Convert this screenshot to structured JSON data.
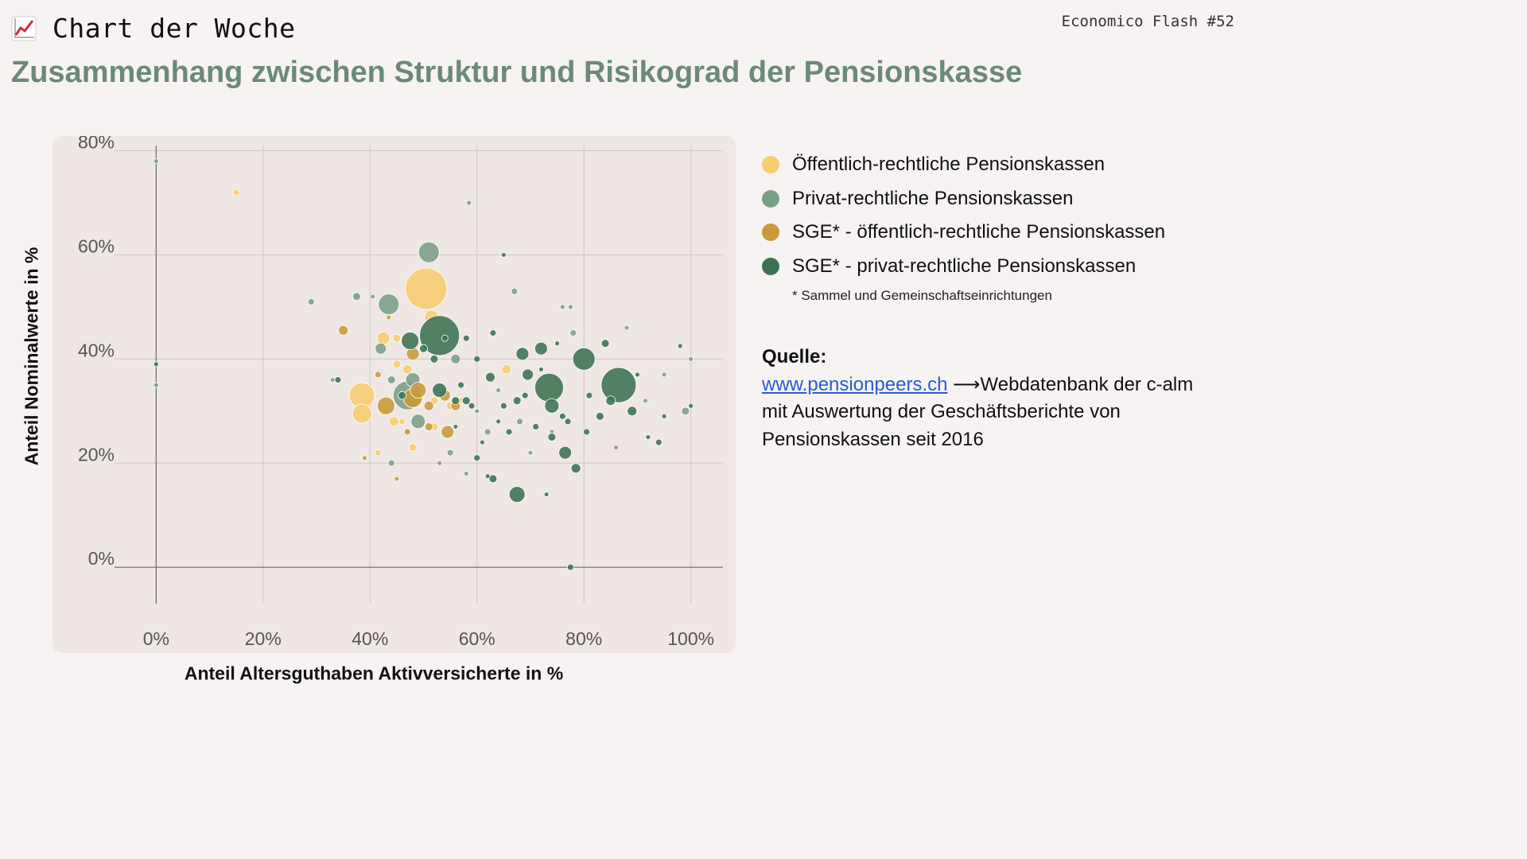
{
  "header": {
    "kicker": "Chart der Woche",
    "issue": "Economico Flash #52",
    "title": "Zusammenhang zwischen Struktur und Risikograd der Pensionskasse"
  },
  "legend": {
    "items": [
      {
        "label": "Öffentlich-rechtliche Pensionskassen",
        "color": "#f9cd6e"
      },
      {
        "label": "Privat-rechtliche Pensionskassen",
        "color": "#7a9f87"
      },
      {
        "label": "SGE* - öffentlich-rechtliche Pensionskassen",
        "color": "#c9993a"
      },
      {
        "label": "SGE* - privat-rechtliche Pensionskassen",
        "color": "#3c7252"
      }
    ],
    "footnote": "* Sammel und Gemeinschaftseinrichtungen"
  },
  "source": {
    "title": "Quelle:",
    "link": "www.pensionpeers.ch",
    "arrow": "⟶",
    "text_after_link": "Webdatenbank der c-alm mit Auswertung der Geschäftsberichte von Pensionskassen seit 2016"
  },
  "chart_data": {
    "type": "scatter",
    "title": "Zusammenhang zwischen Struktur und Risikograd der Pensionskasse",
    "xlabel": "Anteil Altersguthaben Aktivversicherte in %",
    "ylabel": "Anteil Nominalwerte in %",
    "xlim": [
      -6,
      106
    ],
    "ylim": [
      -7,
      81
    ],
    "x_ticks": [
      0,
      20,
      40,
      60,
      80,
      100
    ],
    "y_ticks": [
      0,
      20,
      40,
      60,
      80
    ],
    "x_tick_labels": [
      "0%",
      "20%",
      "40%",
      "60%",
      "80%",
      "100%"
    ],
    "y_tick_labels": [
      "0%",
      "20%",
      "40%",
      "60%",
      "80%"
    ],
    "grid": true,
    "series": [
      {
        "name": "Öffentlich-rechtliche Pensionskassen",
        "color": "#f9cd6e",
        "points": [
          {
            "x": 15,
            "y": 72,
            "s": 4
          },
          {
            "x": 50.5,
            "y": 53.5,
            "s": 26
          },
          {
            "x": 51.5,
            "y": 48,
            "s": 9
          },
          {
            "x": 42.5,
            "y": 44,
            "s": 8
          },
          {
            "x": 45,
            "y": 44,
            "s": 5
          },
          {
            "x": 38.5,
            "y": 33,
            "s": 16
          },
          {
            "x": 38.5,
            "y": 29.5,
            "s": 12
          },
          {
            "x": 42.5,
            "y": 30,
            "s": 6
          },
          {
            "x": 44.5,
            "y": 28,
            "s": 6
          },
          {
            "x": 47,
            "y": 38,
            "s": 6
          },
          {
            "x": 49,
            "y": 35,
            "s": 5
          },
          {
            "x": 48,
            "y": 23,
            "s": 5
          },
          {
            "x": 41.5,
            "y": 22,
            "s": 4
          },
          {
            "x": 52,
            "y": 27,
            "s": 5
          },
          {
            "x": 55,
            "y": 31,
            "s": 5
          },
          {
            "x": 45,
            "y": 39,
            "s": 5
          },
          {
            "x": 65.5,
            "y": 38,
            "s": 6
          },
          {
            "x": 52,
            "y": 32,
            "s": 5
          },
          {
            "x": 46,
            "y": 28,
            "s": 4
          },
          {
            "x": 57,
            "y": 32,
            "s": 4
          }
        ]
      },
      {
        "name": "Privat-rechtliche Pensionskassen",
        "color": "#7a9f87",
        "points": [
          {
            "x": 51,
            "y": 60.5,
            "s": 13
          },
          {
            "x": 43.5,
            "y": 50.5,
            "s": 13
          },
          {
            "x": 37.5,
            "y": 52,
            "s": 5
          },
          {
            "x": 29,
            "y": 51,
            "s": 4
          },
          {
            "x": 40.5,
            "y": 52,
            "s": 3
          },
          {
            "x": 0,
            "y": 78,
            "s": 3
          },
          {
            "x": 0,
            "y": 35,
            "s": 3
          },
          {
            "x": 58.5,
            "y": 70,
            "s": 3
          },
          {
            "x": 67,
            "y": 53,
            "s": 4
          },
          {
            "x": 47,
            "y": 33,
            "s": 18
          },
          {
            "x": 48,
            "y": 36,
            "s": 9
          },
          {
            "x": 49,
            "y": 28,
            "s": 9
          },
          {
            "x": 42,
            "y": 42,
            "s": 7
          },
          {
            "x": 56,
            "y": 40,
            "s": 6
          },
          {
            "x": 44,
            "y": 20,
            "s": 4
          },
          {
            "x": 55,
            "y": 22,
            "s": 4
          },
          {
            "x": 62,
            "y": 26,
            "s": 4
          },
          {
            "x": 76,
            "y": 50,
            "s": 3
          },
          {
            "x": 77.5,
            "y": 50,
            "s": 3
          },
          {
            "x": 88,
            "y": 46,
            "s": 3
          },
          {
            "x": 91.5,
            "y": 32,
            "s": 3
          },
          {
            "x": 95,
            "y": 37,
            "s": 3
          },
          {
            "x": 99,
            "y": 30,
            "s": 5
          },
          {
            "x": 100,
            "y": 40,
            "s": 3
          },
          {
            "x": 86,
            "y": 23,
            "s": 3
          },
          {
            "x": 70,
            "y": 22,
            "s": 3
          },
          {
            "x": 60,
            "y": 30,
            "s": 3
          },
          {
            "x": 53,
            "y": 20,
            "s": 3
          },
          {
            "x": 58,
            "y": 18,
            "s": 3
          },
          {
            "x": 64,
            "y": 34,
            "s": 3
          },
          {
            "x": 74,
            "y": 26,
            "s": 3
          },
          {
            "x": 33,
            "y": 36,
            "s": 3
          },
          {
            "x": 78,
            "y": 45,
            "s": 4
          },
          {
            "x": 68,
            "y": 28,
            "s": 4
          },
          {
            "x": 44,
            "y": 36,
            "s": 5
          }
        ]
      },
      {
        "name": "SGE* - öffentlich-rechtliche Pensionskassen",
        "color": "#c9993a",
        "points": [
          {
            "x": 35,
            "y": 45.5,
            "s": 6
          },
          {
            "x": 43,
            "y": 31,
            "s": 11
          },
          {
            "x": 48,
            "y": 32.5,
            "s": 12
          },
          {
            "x": 49,
            "y": 34,
            "s": 10
          },
          {
            "x": 48,
            "y": 41,
            "s": 8
          },
          {
            "x": 54.5,
            "y": 26,
            "s": 8
          },
          {
            "x": 51,
            "y": 31,
            "s": 6
          },
          {
            "x": 56,
            "y": 31,
            "s": 6
          },
          {
            "x": 54,
            "y": 33,
            "s": 7
          },
          {
            "x": 39,
            "y": 21,
            "s": 3
          },
          {
            "x": 45,
            "y": 17,
            "s": 3
          },
          {
            "x": 43.5,
            "y": 48,
            "s": 3
          },
          {
            "x": 47,
            "y": 26,
            "s": 4
          },
          {
            "x": 51,
            "y": 27,
            "s": 5
          },
          {
            "x": 41.5,
            "y": 37,
            "s": 4
          }
        ]
      },
      {
        "name": "SGE* - privat-rechtliche Pensionskassen",
        "color": "#3c7252",
        "points": [
          {
            "x": 53,
            "y": 44.5,
            "s": 25
          },
          {
            "x": 86.5,
            "y": 35,
            "s": 22
          },
          {
            "x": 73.5,
            "y": 34.5,
            "s": 18
          },
          {
            "x": 80,
            "y": 40,
            "s": 14
          },
          {
            "x": 47.5,
            "y": 43.5,
            "s": 11
          },
          {
            "x": 74,
            "y": 31,
            "s": 9
          },
          {
            "x": 67.5,
            "y": 14,
            "s": 10
          },
          {
            "x": 76.5,
            "y": 22,
            "s": 8
          },
          {
            "x": 72,
            "y": 42,
            "s": 8
          },
          {
            "x": 68.5,
            "y": 41,
            "s": 8
          },
          {
            "x": 69.5,
            "y": 37,
            "s": 7
          },
          {
            "x": 53,
            "y": 34,
            "s": 9
          },
          {
            "x": 62.5,
            "y": 36.5,
            "s": 6
          },
          {
            "x": 78.5,
            "y": 19,
            "s": 6
          },
          {
            "x": 89,
            "y": 30,
            "s": 6
          },
          {
            "x": 85,
            "y": 32,
            "s": 6
          },
          {
            "x": 0,
            "y": 39,
            "s": 3
          },
          {
            "x": 65,
            "y": 60,
            "s": 3
          },
          {
            "x": 77.5,
            "y": 0,
            "s": 4
          },
          {
            "x": 98,
            "y": 42.5,
            "s": 3
          },
          {
            "x": 94,
            "y": 24,
            "s": 4
          },
          {
            "x": 83,
            "y": 29,
            "s": 5
          },
          {
            "x": 60,
            "y": 40,
            "s": 4
          },
          {
            "x": 62,
            "y": 17.5,
            "s": 3
          },
          {
            "x": 63,
            "y": 17,
            "s": 5
          },
          {
            "x": 65,
            "y": 31,
            "s": 4
          },
          {
            "x": 73,
            "y": 14,
            "s": 3
          },
          {
            "x": 56,
            "y": 32,
            "s": 5
          },
          {
            "x": 58,
            "y": 32,
            "s": 5
          },
          {
            "x": 59,
            "y": 31,
            "s": 4
          },
          {
            "x": 61,
            "y": 24,
            "s": 3
          },
          {
            "x": 67.5,
            "y": 32,
            "s": 5
          },
          {
            "x": 71,
            "y": 27,
            "s": 4
          },
          {
            "x": 74,
            "y": 25,
            "s": 5
          },
          {
            "x": 77,
            "y": 28,
            "s": 4
          },
          {
            "x": 81,
            "y": 33,
            "s": 4
          },
          {
            "x": 84,
            "y": 43,
            "s": 5
          },
          {
            "x": 90,
            "y": 37,
            "s": 3
          },
          {
            "x": 92,
            "y": 25,
            "s": 3
          },
          {
            "x": 95,
            "y": 29,
            "s": 3
          },
          {
            "x": 100,
            "y": 31,
            "s": 3
          },
          {
            "x": 57,
            "y": 35,
            "s": 4
          },
          {
            "x": 63,
            "y": 45,
            "s": 4
          },
          {
            "x": 69,
            "y": 33,
            "s": 4
          },
          {
            "x": 60,
            "y": 21,
            "s": 4
          },
          {
            "x": 50,
            "y": 42,
            "s": 5
          },
          {
            "x": 52,
            "y": 40,
            "s": 5
          },
          {
            "x": 54,
            "y": 44,
            "s": 4
          },
          {
            "x": 46,
            "y": 33,
            "s": 5
          },
          {
            "x": 34,
            "y": 36,
            "s": 4
          },
          {
            "x": 76,
            "y": 29,
            "s": 4
          },
          {
            "x": 66,
            "y": 26,
            "s": 4
          },
          {
            "x": 58,
            "y": 44,
            "s": 4
          },
          {
            "x": 75,
            "y": 43,
            "s": 3
          },
          {
            "x": 80.5,
            "y": 26,
            "s": 4
          },
          {
            "x": 64,
            "y": 28,
            "s": 3
          },
          {
            "x": 72,
            "y": 38,
            "s": 3
          },
          {
            "x": 56,
            "y": 27,
            "s": 3
          }
        ]
      }
    ]
  }
}
